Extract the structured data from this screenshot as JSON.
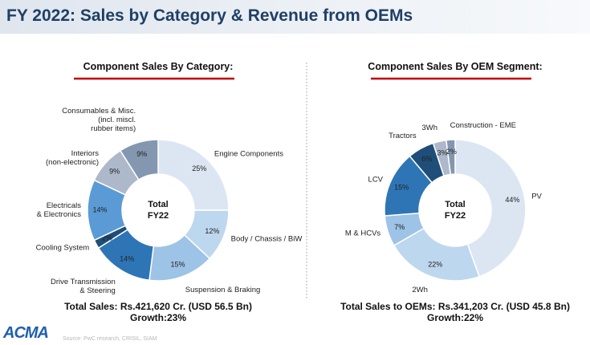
{
  "title": "FY 2022: Sales by Category & Revenue from OEMs",
  "logo": "ACMA",
  "source": "Source: PwC research, CRISIL, SIAM",
  "chart_data": [
    {
      "type": "donut",
      "title": "Component Sales By Category:",
      "center_text": [
        "Total",
        "FY22"
      ],
      "footer": [
        "Total Sales: Rs.421,620 Cr. (USD 56.5 Bn)",
        "Growth:23%"
      ],
      "categories": [
        "Engine Components",
        "Body / Chassis / BiW",
        "Suspension & Braking",
        "Drive Transmission\n& Steering",
        "Cooling System",
        "Electricals\n& Electronics",
        "Interiors\n(non-electronic)",
        "Consumables & Misc.\n(incl. miscl.\nrubber items)"
      ],
      "values": [
        25,
        12,
        15,
        14,
        2,
        14,
        9,
        9
      ],
      "value_labels": [
        "25%",
        "12%",
        "15%",
        "14%",
        "2%",
        "14%",
        "9%",
        "9%"
      ],
      "colors": [
        "#dce6f2",
        "#bdd7ee",
        "#9dc3e6",
        "#2e75b6",
        "#1f4e79",
        "#5b9bd5",
        "#adb9ca",
        "#8497b0"
      ]
    },
    {
      "type": "donut",
      "title": "Component Sales By OEM Segment:",
      "center_text": [
        "Total",
        "FY22"
      ],
      "footer": [
        "Total Sales to OEMs: Rs.341,203 Cr. (USD 45.8 Bn)",
        "Growth:22%"
      ],
      "categories": [
        "PV",
        "2Wh",
        "M & HCVs",
        "LCV",
        "Tractors",
        "3Wh",
        "Construction - EME"
      ],
      "values": [
        44,
        22,
        7,
        15,
        6,
        3,
        2
      ],
      "value_labels": [
        "44%",
        "22%",
        "7%",
        "15%",
        "6%",
        "3%",
        "2%"
      ],
      "colors": [
        "#dce6f2",
        "#bdd7ee",
        "#9dc3e6",
        "#2e75b6",
        "#1f4e79",
        "#adb9ca",
        "#8497b0"
      ]
    }
  ]
}
